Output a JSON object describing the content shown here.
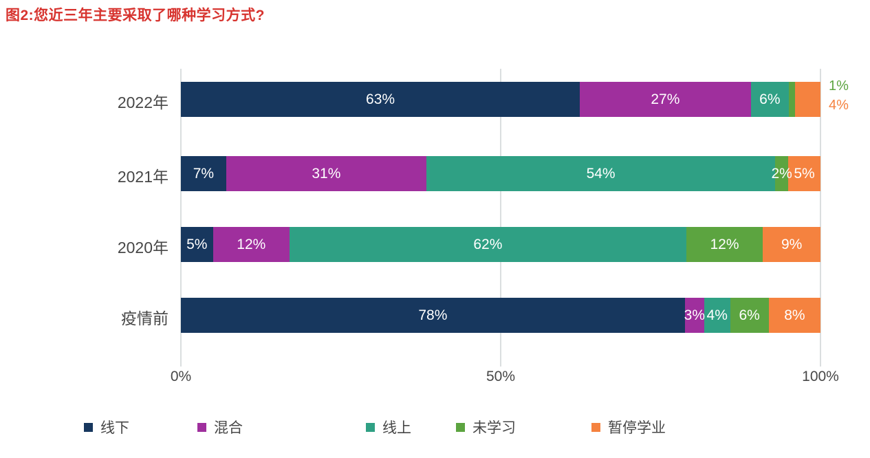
{
  "title": {
    "text": "图2:您近三年主要采取了哪种学习方式?",
    "color": "#d7342f"
  },
  "chart_data": {
    "type": "bar",
    "stacked": true,
    "orientation": "horizontal",
    "title": "图2:您近三年主要采取了哪种学习方式?",
    "categories": [
      "2022年",
      "2021年",
      "2020年",
      "疫情前"
    ],
    "series": [
      {
        "name": "线下",
        "color": "#17375e",
        "values": [
          63,
          7,
          5,
          78
        ]
      },
      {
        "name": "混合",
        "color": "#9f2f9d",
        "values": [
          27,
          31,
          12,
          3
        ]
      },
      {
        "name": "线上",
        "color": "#2fa084",
        "values": [
          6,
          54,
          62,
          4
        ]
      },
      {
        "name": "未学习",
        "color": "#5ca440",
        "values": [
          1,
          2,
          12,
          6
        ]
      },
      {
        "name": "暂停学业",
        "color": "#f5823f",
        "values": [
          4,
          5,
          9,
          8
        ]
      }
    ],
    "bar_labels": [
      [
        "63%",
        "27%",
        "6%",
        "",
        ""
      ],
      [
        "7%",
        "31%",
        "54%",
        "2%",
        "5%"
      ],
      [
        "5%",
        "12%",
        "62%",
        "12%",
        "9%"
      ],
      [
        "78%",
        "3%",
        "4%",
        "6%",
        "8%"
      ]
    ],
    "outside_labels": [
      {
        "text": "1%",
        "color": "#5ca440"
      },
      {
        "text": "4%",
        "color": "#f5823f"
      }
    ],
    "x_ticks": [
      "0%",
      "50%",
      "100%"
    ],
    "xlim": [
      0,
      100
    ],
    "grid": "vertical gridlines at 0%, 50%, 100%",
    "legend_position": "bottom",
    "legend": [
      "线下",
      "混合",
      "线上",
      "未学习",
      "暂停学业"
    ],
    "text_color": "#474747",
    "gridline_color": "#dadedf"
  }
}
